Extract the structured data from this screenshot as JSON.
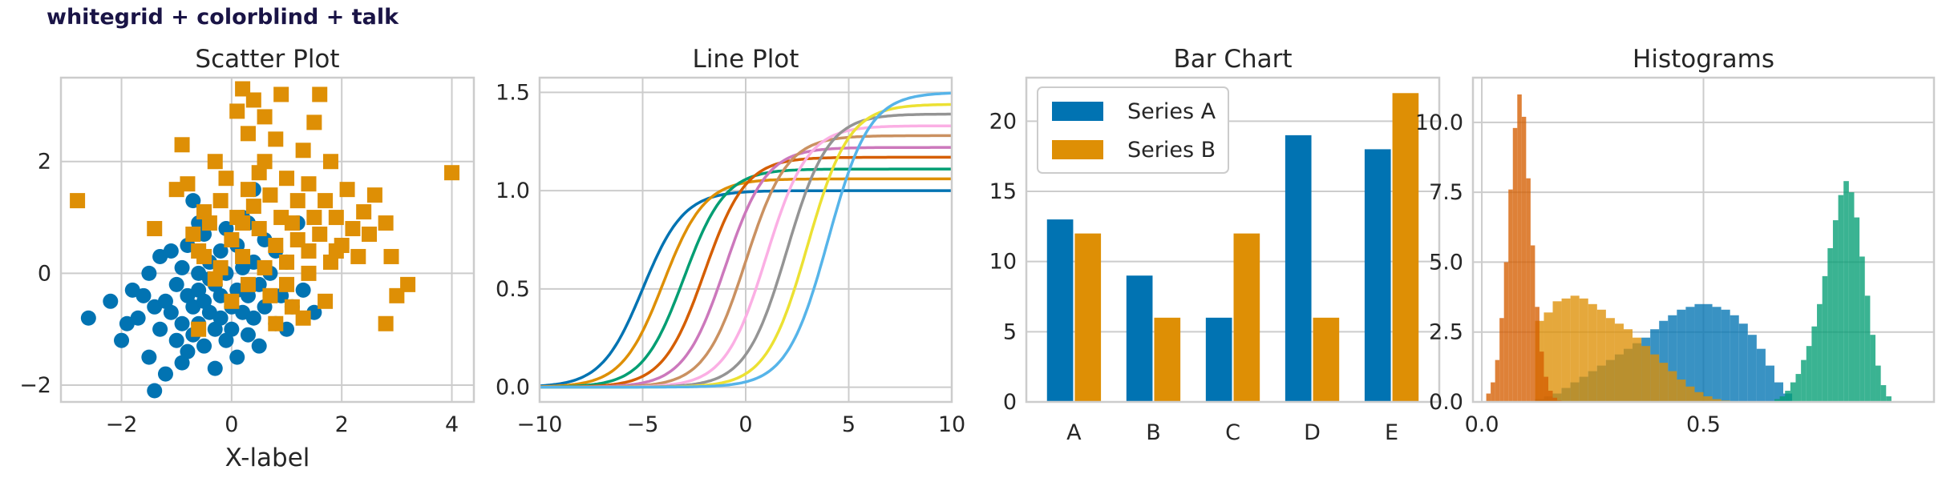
{
  "suptitle": "whitegrid + colorblind + talk",
  "palette": [
    "#0173b2",
    "#de8f05",
    "#029e73",
    "#d55e00",
    "#cc78bc",
    "#ca9161",
    "#fbafe4",
    "#949494",
    "#ece133",
    "#56b4e9"
  ],
  "grid": true,
  "chart_data": [
    {
      "type": "scatter",
      "title": "Scatter Plot",
      "xlabel": "X-label",
      "ylabel": "",
      "xlim": [
        -3.1,
        4.4
      ],
      "ylim": [
        -2.3,
        3.5
      ],
      "xticks": [
        -2,
        0,
        2,
        4
      ],
      "yticks": [
        -2,
        0,
        2
      ],
      "xtick_labels": [
        "−2",
        "0",
        "2",
        "4"
      ],
      "ytick_labels": [
        "−2",
        "0",
        "2"
      ],
      "series": [
        {
          "marker": "circle",
          "color": "#0173b2",
          "points": [
            [
              -2.6,
              -0.8
            ],
            [
              -2.2,
              -0.5
            ],
            [
              -2.0,
              -1.2
            ],
            [
              -1.8,
              -0.3
            ],
            [
              -1.7,
              -0.8
            ],
            [
              -1.6,
              -0.4
            ],
            [
              -1.5,
              0.0
            ],
            [
              -1.5,
              -1.5
            ],
            [
              -1.4,
              -0.6
            ],
            [
              -1.4,
              -2.1
            ],
            [
              -1.3,
              0.3
            ],
            [
              -1.3,
              -1.0
            ],
            [
              -1.2,
              -0.5
            ],
            [
              -1.2,
              -1.8
            ],
            [
              -1.1,
              0.4
            ],
            [
              -1.1,
              -0.7
            ],
            [
              -1.0,
              -0.2
            ],
            [
              -1.0,
              -1.2
            ],
            [
              -0.9,
              0.1
            ],
            [
              -0.9,
              -0.9
            ],
            [
              -0.9,
              -1.6
            ],
            [
              -0.8,
              0.5
            ],
            [
              -0.8,
              -0.4
            ],
            [
              -0.8,
              -1.4
            ],
            [
              -0.7,
              1.3
            ],
            [
              -0.7,
              -0.6
            ],
            [
              -0.7,
              -1.1
            ],
            [
              -0.6,
              0.0
            ],
            [
              -0.6,
              -0.3
            ],
            [
              -0.6,
              -0.9
            ],
            [
              -0.5,
              0.7
            ],
            [
              -0.5,
              -0.5
            ],
            [
              -0.5,
              -1.3
            ],
            [
              -0.4,
              0.2
            ],
            [
              -0.4,
              -0.7
            ],
            [
              -0.3,
              -0.2
            ],
            [
              -0.3,
              -1.0
            ],
            [
              -0.3,
              -1.7
            ],
            [
              -0.2,
              0.4
            ],
            [
              -0.2,
              -0.4
            ],
            [
              -0.2,
              -0.8
            ],
            [
              -0.1,
              0.8
            ],
            [
              -0.1,
              0.0
            ],
            [
              -0.1,
              -1.2
            ],
            [
              0.0,
              -0.6
            ],
            [
              0.0,
              -1.0
            ],
            [
              0.1,
              0.5
            ],
            [
              0.1,
              -0.3
            ],
            [
              0.1,
              -1.5
            ],
            [
              0.2,
              -0.7
            ],
            [
              0.2,
              0.1
            ],
            [
              0.3,
              0.9
            ],
            [
              0.3,
              -0.4
            ],
            [
              0.3,
              -1.1
            ],
            [
              0.4,
              0.2
            ],
            [
              0.4,
              -0.8
            ],
            [
              0.5,
              -0.2
            ],
            [
              0.5,
              -1.3
            ],
            [
              0.6,
              0.6
            ],
            [
              0.6,
              -0.6
            ],
            [
              0.7,
              0.0
            ],
            [
              0.8,
              -0.9
            ],
            [
              0.8,
              0.4
            ],
            [
              0.9,
              -0.4
            ],
            [
              1.0,
              0.2
            ],
            [
              1.0,
              -1.0
            ],
            [
              1.1,
              -0.6
            ],
            [
              1.2,
              0.9
            ],
            [
              1.3,
              -0.3
            ],
            [
              1.5,
              -0.7
            ],
            [
              0.4,
              1.5
            ],
            [
              0.2,
              1.0
            ],
            [
              -0.4,
              -0.1
            ],
            [
              -1.9,
              -0.9
            ],
            [
              -0.6,
              0.9
            ]
          ]
        },
        {
          "marker": "square",
          "color": "#de8f05",
          "points": [
            [
              -2.8,
              1.3
            ],
            [
              -1.4,
              0.8
            ],
            [
              -1.0,
              1.5
            ],
            [
              -0.9,
              2.3
            ],
            [
              -0.8,
              1.6
            ],
            [
              -0.7,
              0.7
            ],
            [
              -0.6,
              0.4
            ],
            [
              -0.6,
              -1.0
            ],
            [
              -0.5,
              0.3
            ],
            [
              -0.4,
              0.9
            ],
            [
              -0.3,
              -0.1
            ],
            [
              -0.3,
              2.0
            ],
            [
              -0.2,
              1.3
            ],
            [
              -0.1,
              1.7
            ],
            [
              0.0,
              0.6
            ],
            [
              0.0,
              -0.5
            ],
            [
              0.1,
              1.0
            ],
            [
              0.1,
              2.9
            ],
            [
              0.2,
              3.3
            ],
            [
              0.2,
              0.3
            ],
            [
              0.3,
              2.5
            ],
            [
              0.3,
              -0.2
            ],
            [
              0.4,
              3.1
            ],
            [
              0.4,
              1.2
            ],
            [
              0.5,
              0.8
            ],
            [
              0.5,
              1.8
            ],
            [
              0.6,
              0.1
            ],
            [
              0.6,
              2.0
            ],
            [
              0.7,
              1.4
            ],
            [
              0.7,
              -0.4
            ],
            [
              0.8,
              0.5
            ],
            [
              0.8,
              2.4
            ],
            [
              0.9,
              1.0
            ],
            [
              0.9,
              3.2
            ],
            [
              1.0,
              0.2
            ],
            [
              1.0,
              1.7
            ],
            [
              1.1,
              0.9
            ],
            [
              1.1,
              -0.6
            ],
            [
              1.2,
              1.3
            ],
            [
              1.2,
              0.6
            ],
            [
              1.3,
              2.2
            ],
            [
              1.3,
              -0.8
            ],
            [
              1.4,
              0.4
            ],
            [
              1.4,
              1.6
            ],
            [
              1.5,
              1.0
            ],
            [
              1.5,
              2.7
            ],
            [
              1.6,
              3.2
            ],
            [
              1.6,
              0.7
            ],
            [
              1.7,
              -0.5
            ],
            [
              1.7,
              1.3
            ],
            [
              1.8,
              2.0
            ],
            [
              1.8,
              0.2
            ],
            [
              1.9,
              1.0
            ],
            [
              2.0,
              0.5
            ],
            [
              2.1,
              1.5
            ],
            [
              2.2,
              0.8
            ],
            [
              2.3,
              0.3
            ],
            [
              2.4,
              1.1
            ],
            [
              2.5,
              0.7
            ],
            [
              2.6,
              1.4
            ],
            [
              2.8,
              0.9
            ],
            [
              2.9,
              0.3
            ],
            [
              3.0,
              -0.4
            ],
            [
              3.2,
              -0.2
            ],
            [
              2.8,
              -0.9
            ],
            [
              4.0,
              1.8
            ],
            [
              0.3,
              1.5
            ],
            [
              -0.5,
              1.1
            ],
            [
              0.6,
              2.8
            ],
            [
              1.0,
              -0.2
            ],
            [
              1.9,
              0.4
            ],
            [
              0.8,
              -0.9
            ],
            [
              -0.2,
              0.1
            ],
            [
              0.2,
              0.9
            ],
            [
              1.4,
              0.0
            ]
          ]
        }
      ]
    },
    {
      "type": "line",
      "title": "Line Plot",
      "xlabel": "",
      "ylabel": "",
      "xlim": [
        -10,
        10
      ],
      "ylim": [
        -0.075,
        1.575
      ],
      "xticks": [
        -10,
        -5,
        0,
        5,
        10
      ],
      "yticks": [
        0.0,
        0.5,
        1.0,
        1.5
      ],
      "xtick_labels": [
        "−10",
        "−5",
        "0",
        "5",
        "10"
      ],
      "ytick_labels": [
        "0.0",
        "0.5",
        "1.0",
        "1.5"
      ],
      "function": "y = a / (1 + exp(-(x - c)))",
      "series": [
        {
          "a": 1.0,
          "c": -5,
          "color": "#0173b2"
        },
        {
          "a": 1.06,
          "c": -4,
          "color": "#de8f05"
        },
        {
          "a": 1.11,
          "c": -3,
          "color": "#029e73"
        },
        {
          "a": 1.17,
          "c": -2,
          "color": "#d55e00"
        },
        {
          "a": 1.22,
          "c": -1,
          "color": "#cc78bc"
        },
        {
          "a": 1.28,
          "c": 0,
          "color": "#ca9161"
        },
        {
          "a": 1.33,
          "c": 1,
          "color": "#fbafe4"
        },
        {
          "a": 1.39,
          "c": 2,
          "color": "#949494"
        },
        {
          "a": 1.44,
          "c": 3,
          "color": "#ece133"
        },
        {
          "a": 1.5,
          "c": 4,
          "color": "#56b4e9"
        }
      ]
    },
    {
      "type": "bar",
      "title": "Bar Chart",
      "xlabel": "",
      "ylabel": "",
      "categories": [
        "A",
        "B",
        "C",
        "D",
        "E"
      ],
      "ylim": [
        0,
        23.1
      ],
      "yticks": [
        0,
        5,
        10,
        15,
        20
      ],
      "ytick_labels": [
        "0",
        "5",
        "10",
        "15",
        "20"
      ],
      "legend_position": "top-left",
      "series": [
        {
          "name": "Series A",
          "values": [
            13,
            9,
            6,
            19,
            18
          ],
          "color": "#0173b2"
        },
        {
          "name": "Series B",
          "values": [
            12,
            6,
            12,
            6,
            22
          ],
          "color": "#de8f05"
        }
      ]
    },
    {
      "type": "histogram",
      "title": "Histograms",
      "xlabel": "",
      "ylabel": "",
      "xlim": [
        -0.02,
        1.02
      ],
      "ylim": [
        0,
        11.6
      ],
      "xticks": [
        0.0,
        0.5
      ],
      "yticks": [
        0.0,
        2.5,
        5.0,
        7.5,
        10.0
      ],
      "xtick_labels": [
        "0.0",
        "0.5"
      ],
      "ytick_labels": [
        "0.0",
        "2.5",
        "5.0",
        "7.5",
        "10.0"
      ],
      "series": [
        {
          "color": "#0173b2",
          "start": 0.12,
          "bin": 0.02,
          "values": [
            0.1,
            0.2,
            0.3,
            0.5,
            0.7,
            0.9,
            1.1,
            1.3,
            1.5,
            1.7,
            1.9,
            2.1,
            2.3,
            2.6,
            2.9,
            3.1,
            3.3,
            3.4,
            3.5,
            3.5,
            3.4,
            3.3,
            3.1,
            2.8,
            2.4,
            1.9,
            1.3,
            0.7,
            0.3
          ]
        },
        {
          "color": "#de8f05",
          "start": 0.12,
          "bin": 0.02,
          "values": [
            2.9,
            3.2,
            3.6,
            3.7,
            3.8,
            3.7,
            3.5,
            3.3,
            3.0,
            2.8,
            2.6,
            2.3,
            2.0,
            1.7,
            1.4,
            1.1,
            0.8,
            0.55,
            0.35,
            0.2,
            0.1,
            0.05
          ]
        },
        {
          "color": "#029e73",
          "start": 0.66,
          "bin": 0.012,
          "values": [
            0.1,
            0.2,
            0.4,
            0.7,
            1.0,
            1.5,
            2.0,
            2.7,
            3.5,
            4.5,
            5.5,
            6.5,
            7.4,
            7.9,
            7.5,
            6.6,
            5.2,
            3.8,
            2.4,
            1.3,
            0.6,
            0.2
          ]
        },
        {
          "color": "#d55e00",
          "start": 0.01,
          "bin": 0.01,
          "values": [
            0.3,
            0.7,
            1.5,
            3.0,
            5.0,
            7.6,
            9.8,
            11.0,
            10.2,
            8.0,
            5.6,
            3.4,
            1.8,
            0.9,
            0.4,
            0.15,
            0.05
          ]
        }
      ]
    }
  ]
}
